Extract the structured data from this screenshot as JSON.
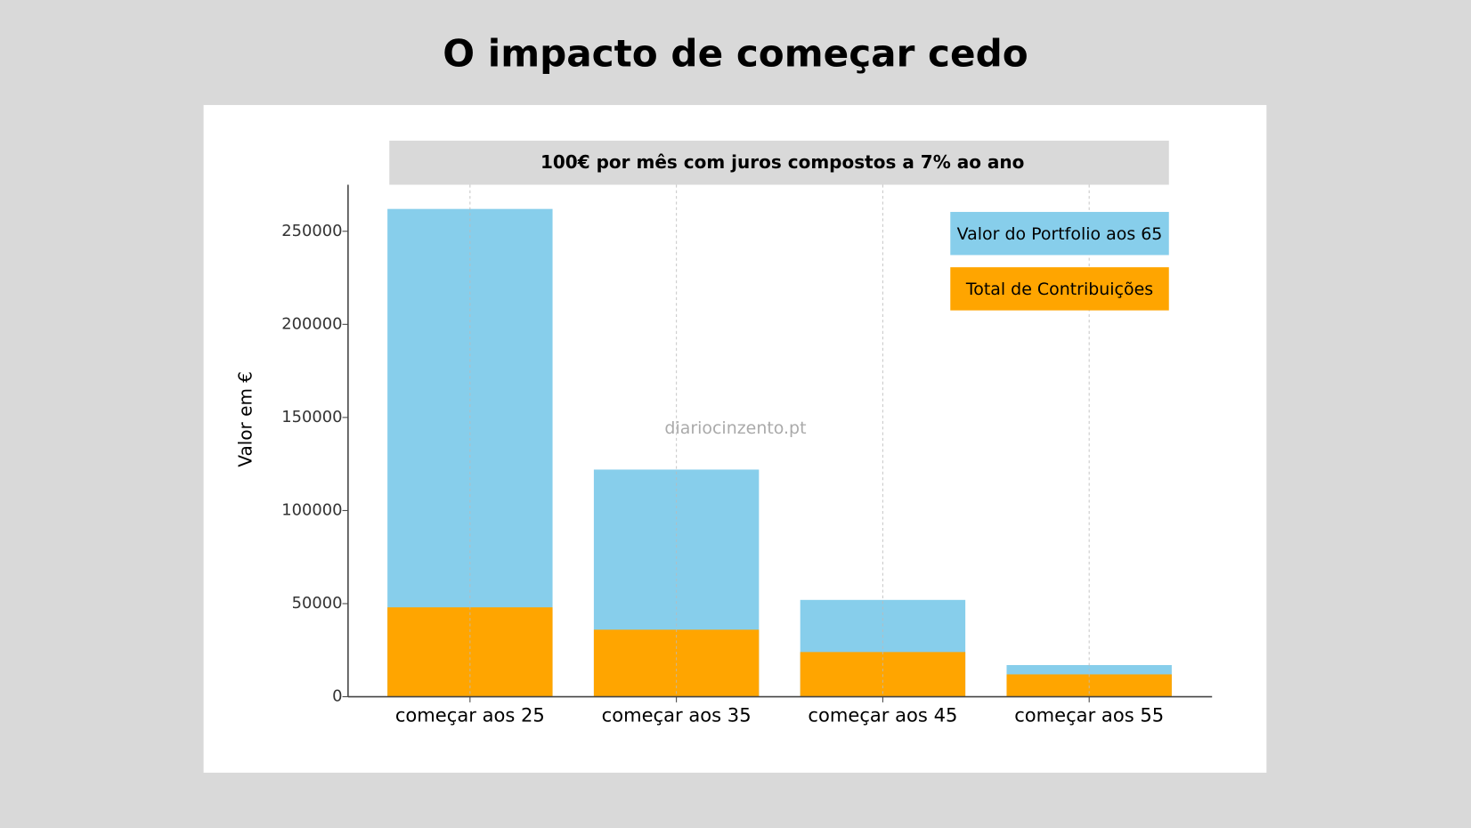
{
  "chart_data": {
    "type": "bar",
    "title": "O impacto de começar cedo",
    "subtitle": "100€ por mês com juros compostos a 7% ao ano",
    "ylabel": "Valor em €",
    "annotation": "diariocinzento.pt",
    "categories": [
      "começar aos 25",
      "começar aos 35",
      "começar aos 45",
      "começar aos 55"
    ],
    "series": [
      {
        "name": "Valor do Portfolio aos 65",
        "color": "#87ceeb",
        "values": [
          262000,
          122000,
          52000,
          17000
        ]
      },
      {
        "name": "Total de Contribuições",
        "color": "#ffa500",
        "values": [
          48000,
          36000,
          24000,
          12000
        ]
      }
    ],
    "ylim": [
      0,
      275000
    ],
    "yticks": [
      0,
      50000,
      100000,
      150000,
      200000,
      250000
    ],
    "grid": "x",
    "legend": "upper right"
  }
}
